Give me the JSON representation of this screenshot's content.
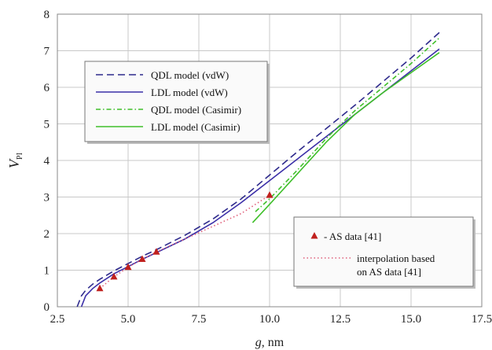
{
  "chart_data": {
    "type": "line",
    "title": "",
    "xlabel": "g, nm",
    "xlabel_italic_part": "g",
    "xlabel_rest": ", nm",
    "ylabel_main": "V",
    "ylabel_sub": "PI",
    "xlim": [
      2.5,
      17.5
    ],
    "ylim": [
      0,
      8
    ],
    "xticks": [
      2.5,
      5.0,
      7.5,
      10.0,
      12.5,
      15.0,
      17.5
    ],
    "xtick_labels": [
      "2.5",
      "5.0",
      "7.5",
      "10.0",
      "12.5",
      "15.0",
      "17.5"
    ],
    "yticks": [
      0,
      1,
      2,
      3,
      4,
      5,
      6,
      7,
      8
    ],
    "ytick_labels": [
      "0",
      "1",
      "2",
      "3",
      "4",
      "5",
      "6",
      "7",
      "8"
    ],
    "grid": true,
    "series": [
      {
        "name": "QDL model (vdW)",
        "color": "#2e2a8c",
        "dash": "dashed",
        "x": [
          3.2,
          3.35,
          3.5,
          3.75,
          4.0,
          4.5,
          5.0,
          5.5,
          6.0,
          7.0,
          8.0,
          9.0,
          10.0,
          11.0,
          12.0,
          13.0,
          14.0,
          15.0,
          16.0
        ],
        "y": [
          0.0,
          0.3,
          0.45,
          0.62,
          0.75,
          0.98,
          1.18,
          1.38,
          1.56,
          1.95,
          2.4,
          2.95,
          3.6,
          4.25,
          4.87,
          5.5,
          6.15,
          6.8,
          7.5
        ]
      },
      {
        "name": "LDL model (vdW)",
        "color": "#3b2fa8",
        "dash": "solid",
        "x": [
          3.35,
          3.5,
          3.75,
          4.0,
          4.5,
          5.0,
          5.5,
          6.0,
          7.0,
          8.0,
          9.0,
          10.0,
          11.0,
          12.0,
          13.0,
          14.0,
          15.0,
          16.0
        ],
        "y": [
          0.0,
          0.3,
          0.5,
          0.65,
          0.9,
          1.1,
          1.3,
          1.48,
          1.85,
          2.3,
          2.85,
          3.45,
          4.05,
          4.65,
          5.25,
          5.85,
          6.45,
          7.05
        ]
      },
      {
        "name": "QDL model (Casimir)",
        "color": "#3fbf2a",
        "dash": "dashdot",
        "x": [
          9.5,
          10.0,
          10.5,
          11.0,
          12.0,
          13.0,
          14.0,
          15.0,
          16.0
        ],
        "y": [
          2.6,
          2.95,
          3.35,
          3.75,
          4.6,
          5.35,
          6.0,
          6.65,
          7.35
        ]
      },
      {
        "name": "LDL model (Casimir)",
        "color": "#3fbf2a",
        "dash": "solid",
        "x": [
          9.4,
          10.0,
          11.0,
          12.0,
          13.0,
          14.0,
          15.0,
          16.0
        ],
        "y": [
          2.3,
          2.8,
          3.65,
          4.5,
          5.25,
          5.85,
          6.4,
          6.95
        ]
      },
      {
        "name": "interpolation based on AS data [41]",
        "color": "#e0607a",
        "dash": "dotted",
        "x": [
          4.0,
          4.5,
          5.0,
          5.5,
          6.0,
          7.0,
          8.0,
          9.0,
          10.0
        ],
        "y": [
          0.5,
          0.82,
          1.08,
          1.3,
          1.5,
          1.85,
          2.2,
          2.55,
          3.05
        ]
      }
    ],
    "scatter": {
      "name": "- AS data [41]",
      "color": "#c0211e",
      "marker": "triangle",
      "x": [
        4.0,
        4.5,
        5.0,
        5.5,
        6.0,
        10.0
      ],
      "y": [
        0.5,
        0.82,
        1.08,
        1.3,
        1.5,
        3.05
      ]
    },
    "legends": [
      {
        "placement": "top-left",
        "entries": [
          {
            "label": "QDL model (vdW)",
            "color": "#2e2a8c",
            "dash": "dashed",
            "kind": "line"
          },
          {
            "label": "LDL model (vdW)",
            "color": "#3b2fa8",
            "dash": "solid",
            "kind": "line"
          },
          {
            "label": "QDL model (Casimir)",
            "color": "#3fbf2a",
            "dash": "dashdot",
            "kind": "line"
          },
          {
            "label": "LDL model (Casimir)",
            "color": "#3fbf2a",
            "dash": "solid",
            "kind": "line"
          }
        ]
      },
      {
        "placement": "bottom-right",
        "entries": [
          {
            "label": "- AS data [41]",
            "color": "#c0211e",
            "kind": "marker"
          },
          {
            "label": "interpolation based",
            "label2": "on AS data [41]",
            "color": "#e0607a",
            "dash": "dotted",
            "kind": "line"
          }
        ]
      }
    ]
  }
}
